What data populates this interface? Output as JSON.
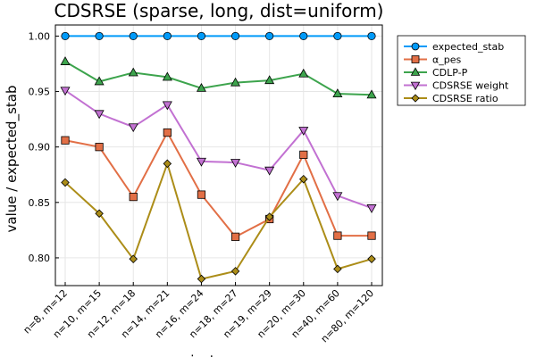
{
  "chart_data": {
    "type": "line",
    "title": "CDSRSE (sparse, long, dist=uniform)",
    "xlabel": "instance",
    "ylabel": "value / expected_stab",
    "categories": [
      "n=8, m=12",
      "n=10, m=15",
      "n=12, m=18",
      "n=14, m=21",
      "n=16, m=24",
      "n=18, m=27",
      "n=19, m=29",
      "n=20, m=30",
      "n=40, m=60",
      "n=80, m=120"
    ],
    "ylim": [
      0.775,
      1.01
    ],
    "yticks": [
      0.8,
      0.85,
      0.9,
      0.95,
      1.0
    ],
    "ytick_labels": [
      "0.80",
      "0.85",
      "0.90",
      "0.95",
      "1.00"
    ],
    "grid": true,
    "legend_position": "top-right outside",
    "series": [
      {
        "name": "expected_stab",
        "color": "#009af9",
        "marker": "circle",
        "values": [
          1.0,
          1.0,
          1.0,
          1.0,
          1.0,
          1.0,
          1.0,
          1.0,
          1.0,
          1.0
        ]
      },
      {
        "name": "α_pes",
        "color": "#e26f46",
        "marker": "square",
        "values": [
          0.906,
          0.9,
          0.855,
          0.913,
          0.857,
          0.819,
          0.835,
          0.893,
          0.82,
          0.82
        ]
      },
      {
        "name": "CDLP-P",
        "color": "#3da44d",
        "marker": "triangle-up",
        "values": [
          0.977,
          0.959,
          0.967,
          0.963,
          0.953,
          0.958,
          0.96,
          0.966,
          0.948,
          0.947
        ]
      },
      {
        "name": "CDSRSE weight",
        "color": "#c271d2",
        "marker": "triangle-down",
        "values": [
          0.951,
          0.93,
          0.918,
          0.938,
          0.887,
          0.886,
          0.879,
          0.915,
          0.856,
          0.845
        ]
      },
      {
        "name": "CDSRSE ratio",
        "color": "#ac8d18",
        "marker": "diamond",
        "values": [
          0.868,
          0.84,
          0.799,
          0.885,
          0.781,
          0.788,
          0.837,
          0.871,
          0.79,
          0.799
        ]
      }
    ]
  }
}
